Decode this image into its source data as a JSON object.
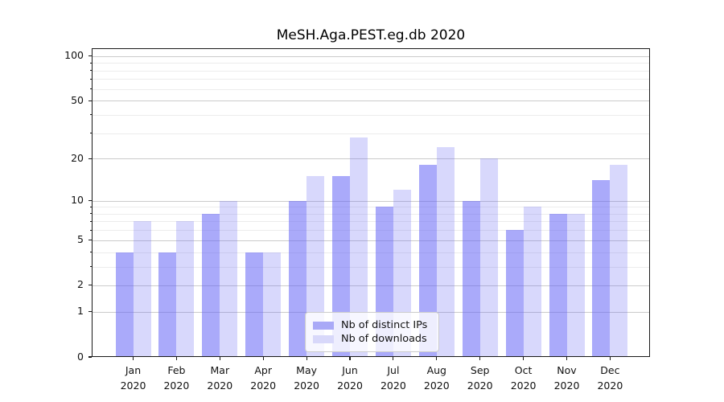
{
  "chart_data": {
    "type": "bar",
    "title": "MeSH.Aga.PEST.eg.db 2020",
    "categories": [
      "Jan",
      "Feb",
      "Mar",
      "Apr",
      "May",
      "Jun",
      "Jul",
      "Aug",
      "Sep",
      "Oct",
      "Nov",
      "Dec"
    ],
    "category_year": "2020",
    "series": [
      {
        "name": "Nb of distinct IPs",
        "color": "#a9a9f7",
        "fill": "rgba(100,100,245,0.55)",
        "values": [
          4,
          4,
          8,
          4,
          10,
          15,
          9,
          18,
          10,
          6,
          8,
          14
        ]
      },
      {
        "name": "Nb of downloads",
        "color": "#d8d8fa",
        "fill": "rgba(100,100,245,0.25)",
        "values": [
          7,
          7,
          10,
          4,
          15,
          28,
          12,
          24,
          20,
          9,
          8,
          18
        ]
      }
    ],
    "yscale": "log1p",
    "ylim": [
      0,
      113
    ],
    "yticks": [
      0,
      1,
      2,
      5,
      10,
      20,
      50,
      100
    ],
    "yticks_minor": [
      3,
      4,
      6,
      7,
      8,
      9,
      30,
      40,
      60,
      70,
      80,
      90
    ],
    "grid": true,
    "legend_position": "lower center"
  }
}
